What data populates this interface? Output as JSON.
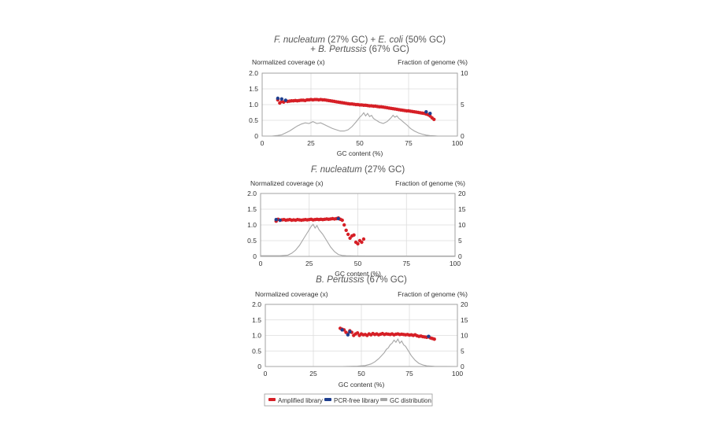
{
  "colors": {
    "amplified": "#d61f26",
    "pcr_free": "#1f3f8f",
    "gc_distribution": "#a6a6a6",
    "grid": "#dcdcdc"
  },
  "legend": {
    "items": [
      {
        "label": "Amplified library",
        "color": "#d61f26"
      },
      {
        "label": "PCR-free library",
        "color": "#1f3f8f"
      },
      {
        "label": "GC distribution",
        "color": "#a6a6a6"
      }
    ]
  },
  "chart_data": [
    {
      "type": "scatter",
      "title_parts": [
        {
          "text": "F. nucleatum",
          "italic": true
        },
        {
          "text": " (27% GC) + ",
          "italic": false
        },
        {
          "text": "E. coli",
          "italic": true
        },
        {
          "text": " (50% GC)",
          "italic": false
        }
      ],
      "title_line2_parts": [
        {
          "text": "+ ",
          "italic": false
        },
        {
          "text": "B. Pertussis",
          "italic": true
        },
        {
          "text": " (67% GC)",
          "italic": false
        }
      ],
      "xlabel": "GC content (%)",
      "ylabel": "Normalized coverage (x)",
      "y2label": "Fraction of genome (%)",
      "xlim": [
        0,
        100
      ],
      "ylim": [
        0,
        2.0
      ],
      "y2lim": [
        0,
        10
      ],
      "xticks": [
        "0",
        "25",
        "50",
        "75",
        "100"
      ],
      "yticks": [
        "0",
        "0.5",
        "1.0",
        "1.5",
        "2.0"
      ],
      "y2ticks": [
        "0",
        "5",
        "10"
      ],
      "series": [
        {
          "name": "Amplified library",
          "marker": "amplified",
          "x": [
            8,
            9,
            10,
            11,
            12,
            13,
            14,
            15,
            16,
            17,
            18,
            19,
            20,
            21,
            22,
            23,
            24,
            25,
            26,
            27,
            28,
            29,
            30,
            31,
            32,
            33,
            34,
            35,
            36,
            37,
            38,
            39,
            40,
            41,
            42,
            43,
            44,
            45,
            46,
            47,
            48,
            49,
            50,
            51,
            52,
            53,
            54,
            55,
            56,
            57,
            58,
            59,
            60,
            61,
            62,
            63,
            64,
            65,
            66,
            67,
            68,
            69,
            70,
            71,
            72,
            73,
            74,
            75,
            76,
            77,
            78,
            79,
            80,
            81,
            82,
            83,
            84,
            85,
            86,
            87,
            88
          ],
          "y": [
            1.15,
            1.05,
            1.1,
            1.08,
            1.12,
            1.1,
            1.11,
            1.12,
            1.12,
            1.13,
            1.12,
            1.13,
            1.14,
            1.14,
            1.13,
            1.15,
            1.15,
            1.16,
            1.15,
            1.16,
            1.16,
            1.15,
            1.16,
            1.15,
            1.15,
            1.14,
            1.13,
            1.12,
            1.11,
            1.1,
            1.09,
            1.08,
            1.07,
            1.06,
            1.05,
            1.04,
            1.03,
            1.02,
            1.02,
            1.01,
            1.0,
            1.0,
            0.99,
            0.99,
            0.98,
            0.98,
            0.97,
            0.96,
            0.96,
            0.95,
            0.95,
            0.94,
            0.93,
            0.93,
            0.92,
            0.91,
            0.9,
            0.89,
            0.88,
            0.87,
            0.86,
            0.85,
            0.84,
            0.83,
            0.82,
            0.81,
            0.8,
            0.8,
            0.79,
            0.78,
            0.77,
            0.76,
            0.75,
            0.74,
            0.73,
            0.72,
            0.7,
            0.68,
            0.64,
            0.58,
            0.53
          ]
        },
        {
          "name": "PCR-free library",
          "marker": "pcr_free",
          "x": [
            8,
            10,
            12,
            84,
            86
          ],
          "y": [
            1.2,
            1.18,
            1.14,
            0.77,
            0.72
          ]
        },
        {
          "name": "GC distribution",
          "marker": "gc_distribution",
          "axis": "y2",
          "x": [
            0,
            5,
            8,
            10,
            12,
            14,
            16,
            18,
            20,
            22,
            24,
            26,
            28,
            30,
            32,
            34,
            36,
            38,
            40,
            42,
            44,
            46,
            48,
            50,
            51,
            52,
            53,
            54,
            55,
            56,
            57,
            58,
            60,
            62,
            64,
            65,
            66,
            67,
            68,
            69,
            70,
            71,
            72,
            74,
            76,
            78,
            80,
            82,
            84,
            86,
            88,
            90,
            95,
            100
          ],
          "y": [
            0,
            0,
            0.1,
            0.2,
            0.5,
            0.8,
            1.2,
            1.6,
            1.9,
            2.1,
            2.0,
            2.3,
            2.0,
            2.1,
            1.8,
            1.5,
            1.2,
            1.0,
            0.8,
            0.8,
            1.0,
            1.5,
            2.2,
            3.0,
            3.3,
            3.7,
            3.2,
            3.6,
            3.1,
            3.3,
            2.8,
            2.6,
            2.2,
            2.0,
            2.3,
            2.6,
            2.9,
            3.3,
            3.0,
            3.2,
            2.8,
            2.6,
            2.3,
            1.8,
            1.2,
            0.8,
            0.5,
            0.3,
            0.15,
            0.08,
            0.04,
            0,
            0,
            0
          ]
        }
      ]
    },
    {
      "type": "scatter",
      "title_parts": [
        {
          "text": "F. nucleatum",
          "italic": true
        },
        {
          "text": " (27% GC)",
          "italic": false
        }
      ],
      "xlabel": "GC content (%)",
      "ylabel": "Normalized coverage (x)",
      "y2label": "Fraction of genome (%)",
      "xlim": [
        0,
        100
      ],
      "ylim": [
        0,
        2.0
      ],
      "y2lim": [
        0,
        20
      ],
      "xticks": [
        "0",
        "25",
        "50",
        "75",
        "100"
      ],
      "yticks": [
        "0",
        "0.5",
        "1.0",
        "1.5",
        "2.0"
      ],
      "y2ticks": [
        "0",
        "5",
        "10",
        "15",
        "20"
      ],
      "series": [
        {
          "name": "Amplified library",
          "marker": "amplified",
          "x": [
            8,
            9,
            10,
            11,
            12,
            13,
            14,
            15,
            16,
            17,
            18,
            19,
            20,
            21,
            22,
            23,
            24,
            25,
            26,
            27,
            28,
            29,
            30,
            31,
            32,
            33,
            34,
            35,
            36,
            37,
            38,
            39,
            40,
            41,
            42,
            43,
            44,
            45,
            46,
            47,
            48,
            49,
            50,
            51,
            52,
            53
          ],
          "y": [
            1.12,
            1.18,
            1.15,
            1.16,
            1.17,
            1.15,
            1.16,
            1.17,
            1.15,
            1.16,
            1.15,
            1.17,
            1.16,
            1.15,
            1.16,
            1.17,
            1.16,
            1.17,
            1.18,
            1.16,
            1.17,
            1.18,
            1.17,
            1.18,
            1.17,
            1.18,
            1.19,
            1.18,
            1.19,
            1.2,
            1.19,
            1.2,
            1.22,
            1.18,
            1.15,
            1.0,
            0.83,
            0.7,
            0.58,
            0.65,
            0.68,
            0.45,
            0.4,
            0.5,
            0.45,
            0.55
          ]
        },
        {
          "name": "PCR-free library",
          "marker": "pcr_free",
          "x": [
            8,
            10,
            40
          ],
          "y": [
            1.17,
            1.15,
            1.2
          ]
        },
        {
          "name": "GC distribution",
          "marker": "gc_distribution",
          "axis": "y2",
          "x": [
            0,
            10,
            14,
            16,
            18,
            20,
            22,
            24,
            25,
            26,
            27,
            28,
            29,
            30,
            32,
            34,
            36,
            38,
            40,
            42,
            44,
            48,
            55,
            100
          ],
          "y": [
            0.2,
            0.2,
            0.4,
            1.0,
            2.0,
            3.5,
            5.5,
            7.5,
            8.5,
            9.5,
            10.2,
            9.0,
            9.8,
            8.5,
            7.0,
            5.0,
            3.0,
            1.5,
            0.6,
            0.3,
            0.2,
            0.15,
            0.1,
            0.1
          ]
        }
      ]
    },
    {
      "type": "scatter",
      "title_parts": [
        {
          "text": "B. Pertussis",
          "italic": true
        },
        {
          "text": " (67% GC)",
          "italic": false
        }
      ],
      "xlabel": "GC content (%)",
      "ylabel": "Normalized coverage (x)",
      "y2label": "Fraction of genome (%)",
      "xlim": [
        0,
        100
      ],
      "ylim": [
        0,
        2.0
      ],
      "y2lim": [
        0,
        20
      ],
      "xticks": [
        "0",
        "25",
        "50",
        "75",
        "100"
      ],
      "yticks": [
        "0",
        "0.5",
        "1.0",
        "1.5",
        "2.0"
      ],
      "y2ticks": [
        "0",
        "5",
        "10",
        "15",
        "20"
      ],
      "series": [
        {
          "name": "Amplified library",
          "marker": "amplified",
          "x": [
            39,
            40,
            41,
            42,
            43,
            44,
            45,
            46,
            47,
            48,
            49,
            50,
            51,
            52,
            53,
            54,
            55,
            56,
            57,
            58,
            59,
            60,
            61,
            62,
            63,
            64,
            65,
            66,
            67,
            68,
            69,
            70,
            71,
            72,
            73,
            74,
            75,
            76,
            77,
            78,
            79,
            80,
            81,
            82,
            83,
            84,
            85,
            86,
            87,
            88
          ],
          "y": [
            1.23,
            1.2,
            1.18,
            1.1,
            1.05,
            1.15,
            1.1,
            1.0,
            1.05,
            1.08,
            1.0,
            1.05,
            1.02,
            1.03,
            1.0,
            1.05,
            1.02,
            1.06,
            1.03,
            1.05,
            1.02,
            1.04,
            1.06,
            1.03,
            1.05,
            1.04,
            1.03,
            1.05,
            1.02,
            1.04,
            1.05,
            1.03,
            1.04,
            1.03,
            1.02,
            1.03,
            1.01,
            1.02,
            1.0,
            1.02,
            0.99,
            0.97,
            0.98,
            0.96,
            0.95,
            0.94,
            0.95,
            0.92,
            0.9,
            0.88
          ]
        },
        {
          "name": "PCR-free library",
          "marker": "pcr_free",
          "x": [
            40,
            43,
            44,
            85
          ],
          "y": [
            1.18,
            1.02,
            1.12,
            0.97
          ]
        },
        {
          "name": "GC distribution",
          "marker": "gc_distribution",
          "axis": "y2",
          "x": [
            0,
            40,
            48,
            52,
            55,
            57,
            59,
            61,
            62,
            63,
            64,
            65,
            66,
            67,
            68,
            69,
            70,
            71,
            72,
            73,
            74,
            76,
            78,
            80,
            82,
            84,
            88,
            100
          ],
          "y": [
            0,
            0,
            0.1,
            0.3,
            0.8,
            1.5,
            2.5,
            3.8,
            4.5,
            5.5,
            6.0,
            7.0,
            7.5,
            8.5,
            7.8,
            8.8,
            7.5,
            8.2,
            7.0,
            6.5,
            5.5,
            3.5,
            2.0,
            1.0,
            0.5,
            0.2,
            0.05,
            0
          ]
        }
      ]
    }
  ]
}
